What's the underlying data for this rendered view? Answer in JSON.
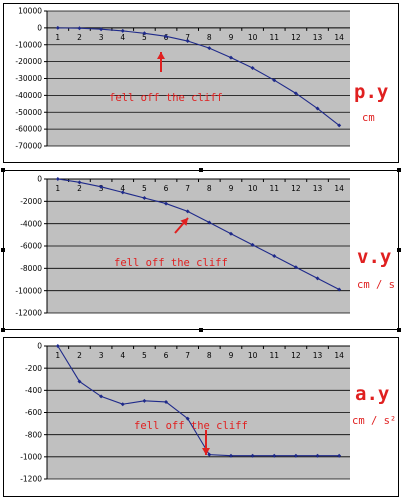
{
  "colors": {
    "series": "#1f2a8a",
    "plot_background": "#c0c0c0",
    "annotation": "#e02020"
  },
  "chart_data": [
    {
      "type": "line",
      "x": [
        1,
        2,
        3,
        4,
        5,
        6,
        7,
        8,
        9,
        10,
        11,
        12,
        13,
        14
      ],
      "series": [
        {
          "values": [
            0,
            -200,
            -800,
            -1800,
            -3200,
            -5000,
            -7800,
            -12000,
            -17600,
            -23800,
            -31000,
            -38800,
            -47800,
            -57800
          ]
        }
      ],
      "ylim": [
        -70000,
        10000
      ],
      "yticks": [
        10000,
        0,
        -10000,
        -20000,
        -30000,
        -40000,
        -50000,
        -60000,
        -70000
      ],
      "grid": true,
      "annotation": "fell off the cliff",
      "var_label": "p.y",
      "unit_label": "cm"
    },
    {
      "type": "line",
      "x": [
        1,
        2,
        3,
        4,
        5,
        6,
        7,
        8,
        9,
        10,
        11,
        12,
        13,
        14
      ],
      "series": [
        {
          "values": [
            0,
            -300,
            -700,
            -1200,
            -1700,
            -2200,
            -2900,
            -3900,
            -4900,
            -5900,
            -6900,
            -7900,
            -8900,
            -9900
          ]
        }
      ],
      "ylim": [
        -12000,
        0
      ],
      "yticks": [
        0,
        -2000,
        -4000,
        -6000,
        -8000,
        -10000,
        -12000
      ],
      "grid": true,
      "annotation": "fell off the cliff",
      "var_label": "v.y",
      "unit_label": "cm / s"
    },
    {
      "type": "line",
      "x": [
        1,
        2,
        3,
        4,
        5,
        6,
        7,
        8,
        9,
        10,
        11,
        12,
        13,
        14
      ],
      "series": [
        {
          "values": [
            0,
            -320,
            -455,
            -525,
            -495,
            -505,
            -655,
            -980,
            -990,
            -990,
            -990,
            -990,
            -990,
            -990
          ]
        }
      ],
      "ylim": [
        -1200,
        0
      ],
      "yticks": [
        0,
        -200,
        -400,
        -600,
        -800,
        -1000,
        -1200
      ],
      "grid": true,
      "annotation": "fell off the cliff",
      "var_label": "a.y",
      "unit_label": "cm / s²"
    }
  ]
}
